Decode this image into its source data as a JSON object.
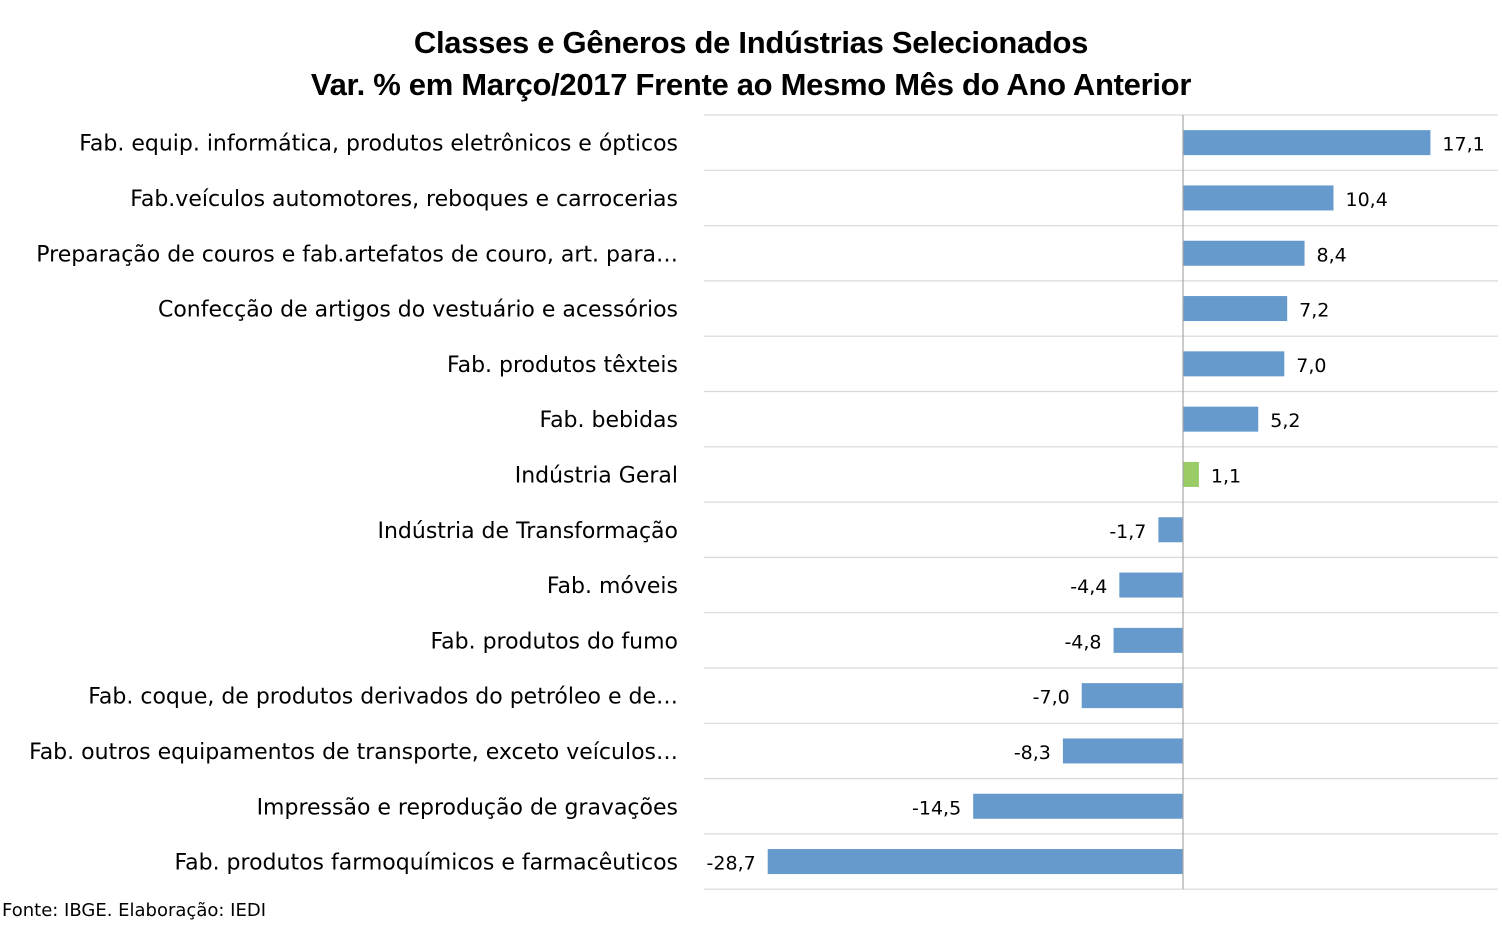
{
  "chart_data": {
    "type": "bar",
    "orientation": "horizontal",
    "title": "Classes e Gêneros de Indústrias Selecionados",
    "subtitle": "Var. % em Março/2017 Frente ao Mesmo Mês do Ano Anterior",
    "categories": [
      "Fab. equip. informática, produtos eletrônicos e ópticos",
      "Fab.veículos automotores, reboques e carrocerias",
      "Preparação de couros e fab.artefatos de couro, art. para…",
      "Confecção de artigos do vestuário e acessórios",
      "Fab. produtos têxteis",
      "Fab. bebidas",
      "Indústria Geral",
      "Indústria de Transformação",
      "Fab. móveis",
      "Fab. produtos do fumo",
      "Fab. coque, de produtos derivados do petróleo e de…",
      "Fab. outros equipamentos de transporte, exceto veículos…",
      "Impressão e reprodução de gravações",
      "Fab. produtos farmoquímicos e farmacêuticos"
    ],
    "values": [
      17.1,
      10.4,
      8.4,
      7.2,
      7.0,
      5.2,
      1.1,
      -1.7,
      -4.4,
      -4.8,
      -7.0,
      -8.3,
      -14.5,
      -28.7
    ],
    "value_labels": [
      "17,1",
      "10,4",
      "8,4",
      "7,2",
      "7,0",
      "5,2",
      "1,1",
      "-1,7",
      "-4,4",
      "-4,8",
      "-7,0",
      "-8,3",
      "-14,5",
      "-28,7"
    ],
    "highlight_category": "Indústria Geral",
    "colors": {
      "bar": "#6699CC",
      "highlight": "#99CC66",
      "gridline": "#D9D9D9",
      "axis": "#A6A6A6"
    },
    "xlim": [
      -33,
      22
    ],
    "grid": true,
    "legend": "none"
  },
  "footer": {
    "source": "Fonte: IBGE. Elaboração: IEDI"
  }
}
